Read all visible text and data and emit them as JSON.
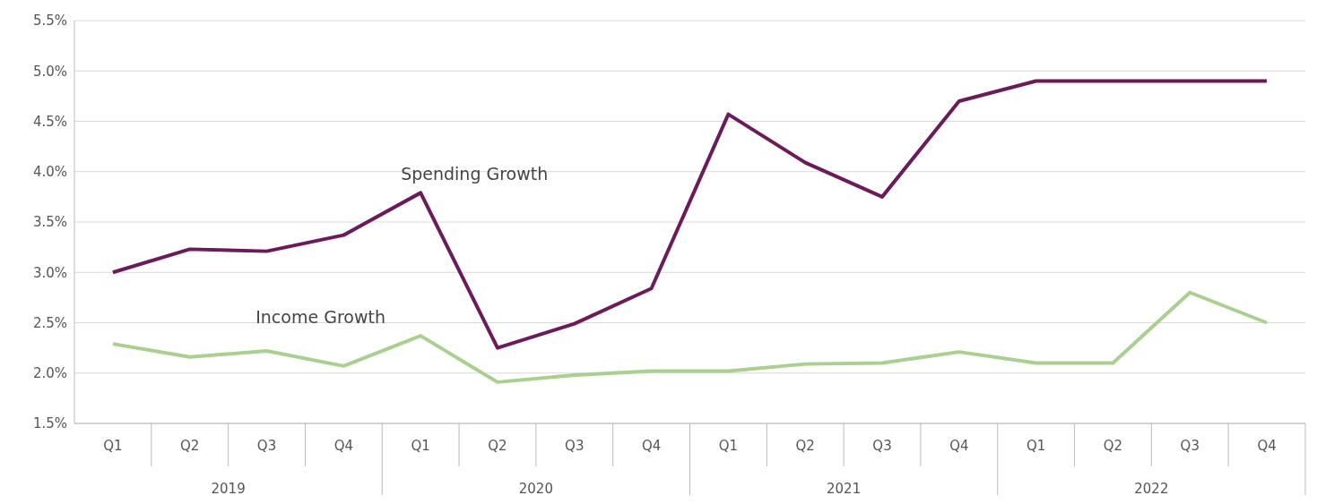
{
  "chart_data": {
    "type": "line",
    "categories": [
      "Q1",
      "Q2",
      "Q3",
      "Q4",
      "Q1",
      "Q2",
      "Q3",
      "Q4",
      "Q1",
      "Q2",
      "Q3",
      "Q4",
      "Q1",
      "Q2",
      "Q3",
      "Q4"
    ],
    "series": [
      {
        "name": "Spending Growth",
        "color": "#6b1a5a",
        "values": [
          3.0,
          3.23,
          3.21,
          3.37,
          3.79,
          2.25,
          2.49,
          2.84,
          4.57,
          4.09,
          3.75,
          4.7,
          4.9,
          4.9,
          4.9,
          4.9
        ]
      },
      {
        "name": "Income Growth",
        "color": "#a9d08e",
        "values": [
          2.29,
          2.16,
          2.22,
          2.07,
          2.37,
          1.91,
          1.98,
          2.02,
          2.02,
          2.09,
          2.1,
          2.21,
          2.1,
          2.1,
          2.8,
          2.5
        ]
      }
    ],
    "ylim": [
      1.5,
      5.5
    ],
    "yticks": [
      {
        "value": 1.5,
        "label": "1.5%"
      },
      {
        "value": 2.0,
        "label": "2.0%"
      },
      {
        "value": 2.5,
        "label": "2.5%"
      },
      {
        "value": 3.0,
        "label": "3.0%"
      },
      {
        "value": 3.5,
        "label": "3.5%"
      },
      {
        "value": 4.0,
        "label": "4.0%"
      },
      {
        "value": 4.5,
        "label": "4.5%"
      },
      {
        "value": 5.0,
        "label": "5.0%"
      },
      {
        "value": 5.5,
        "label": "5.5%"
      }
    ],
    "annotations": [
      "2019",
      "2020",
      "2021",
      "2022"
    ],
    "grid": "y",
    "legend": false,
    "marker": "none",
    "line_style": "solid"
  }
}
